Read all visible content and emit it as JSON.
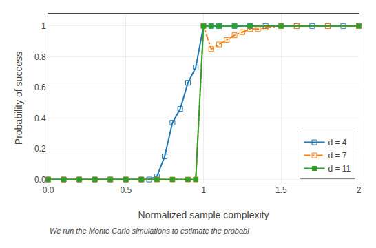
{
  "chart_data": {
    "type": "line",
    "x_title": "Normalized sample complexity",
    "y_title": "Probability of success",
    "caption": "We run the Monte Carlo simulations to estimate the probabi",
    "xlim": [
      0,
      2
    ],
    "ylim": [
      -0.02,
      1.08
    ],
    "xticks": [
      {
        "value": 0,
        "label": "0.0"
      },
      0.5,
      1.0,
      1.5,
      2.0
    ],
    "yticks": [
      {
        "value": 0,
        "label": "0.0"
      },
      0.2,
      0.4,
      0.6,
      0.8,
      1.0
    ],
    "grid": true,
    "legend": "lower right",
    "series": [
      {
        "name": "d = 4",
        "line_style": "solid",
        "marker": "square-open",
        "x": [
          0.0,
          0.1,
          0.2,
          0.3,
          0.4,
          0.5,
          0.6,
          0.65,
          0.7,
          0.75,
          0.8,
          0.85,
          0.9,
          0.95,
          1.0,
          1.05,
          1.1,
          1.2,
          1.3,
          1.4,
          1.5,
          1.6,
          1.7,
          1.8,
          1.9,
          2.0
        ],
        "values": [
          0.0,
          0.0,
          0.0,
          0.0,
          0.0,
          0.0,
          0.0,
          0.0,
          0.02,
          0.15,
          0.37,
          0.46,
          0.63,
          0.73,
          1.0,
          1.0,
          1.0,
          1.0,
          1.0,
          1.0,
          1.0,
          1.0,
          1.0,
          1.0,
          1.0,
          1.0
        ]
      },
      {
        "name": "d = 7",
        "line_style": "dashdot",
        "marker": "square-open",
        "x": [
          0.0,
          0.1,
          0.2,
          0.3,
          0.4,
          0.5,
          0.6,
          0.7,
          0.8,
          0.9,
          0.95,
          1.0,
          1.05,
          1.1,
          1.15,
          1.2,
          1.25,
          1.3,
          1.35,
          1.4,
          1.5,
          1.6,
          1.8,
          2.0
        ],
        "values": [
          0.0,
          0.0,
          0.0,
          0.0,
          0.0,
          0.0,
          0.0,
          0.0,
          0.0,
          0.0,
          0.0,
          1.0,
          0.85,
          0.88,
          0.91,
          0.94,
          0.96,
          0.98,
          0.98,
          0.99,
          1.0,
          1.0,
          1.0,
          1.0
        ]
      },
      {
        "name": "d = 11",
        "line_style": "solid",
        "marker": "square",
        "x": [
          0.0,
          0.1,
          0.2,
          0.3,
          0.4,
          0.5,
          0.6,
          0.7,
          0.8,
          0.9,
          0.95,
          1.0,
          1.05,
          1.1,
          1.2,
          1.3,
          1.5,
          2.0
        ],
        "values": [
          0.0,
          0.0,
          0.0,
          0.0,
          0.0,
          0.0,
          0.0,
          0.0,
          0.0,
          0.0,
          0.0,
          1.0,
          1.0,
          1.0,
          1.0,
          1.0,
          1.0,
          1.0
        ]
      }
    ]
  }
}
